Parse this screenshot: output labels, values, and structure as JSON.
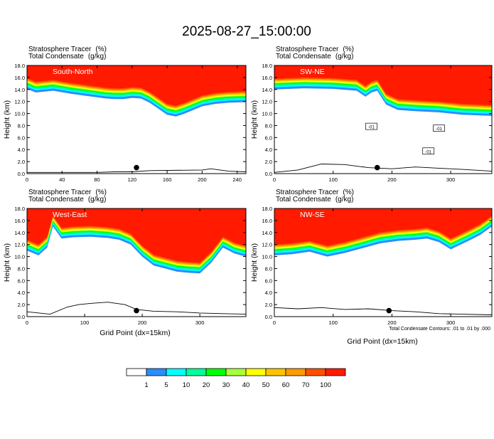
{
  "title": "2025-08-27_15:00:00",
  "panel_labels": {
    "left": "Stratosphere Tracer",
    "left_unit": "(%)",
    "right": "Total Condensate",
    "right_unit": "(g/kg)"
  },
  "ylabel": "Height (km)",
  "xlabel": "Grid Point (dx=15km)",
  "contour_note": "Total Condensate Contours: .01 to .01 by .000",
  "colors": {
    "red": "#ff1a00",
    "orange_red": "#ff5000",
    "orange": "#ff9a00",
    "amber": "#ffc400",
    "yellow": "#ffff00",
    "lime": "#a8ff3c",
    "green": "#00ff00",
    "spring": "#00ff99",
    "cyan": "#00ffff",
    "blue": "#2a8cff"
  },
  "colorbar": {
    "labels": [
      "1",
      "5",
      "10",
      "20",
      "30",
      "40",
      "50",
      "60",
      "70",
      "100"
    ],
    "colors": [
      "#ffffff",
      "#2a8cff",
      "#00ffff",
      "#00ff99",
      "#00ff00",
      "#a8ff3c",
      "#ffff00",
      "#ffc400",
      "#ff9a00",
      "#ff5000",
      "#ff1a00"
    ]
  },
  "chart_data": [
    {
      "type": "heatmap",
      "name": "South-North",
      "xlim": [
        0,
        250
      ],
      "xticks": [
        0,
        40,
        80,
        120,
        160,
        200,
        240
      ],
      "ylim": [
        0,
        18
      ],
      "yticks": [
        "0.0",
        "2.0",
        "4.0",
        "6.0",
        "8.0",
        "10.0",
        "12.0",
        "14.0",
        "16.0",
        "18.0"
      ],
      "tracer_base_height": {
        "x": [
          0,
          10,
          30,
          50,
          70,
          90,
          100,
          110,
          120,
          130,
          140,
          150,
          160,
          170,
          180,
          190,
          200,
          215,
          230,
          250
        ],
        "y": [
          14.1,
          13.5,
          13.8,
          13.3,
          12.9,
          12.5,
          12.4,
          12.4,
          12.6,
          12.5,
          11.8,
          10.8,
          9.8,
          9.5,
          10.0,
          10.6,
          11.2,
          11.6,
          11.8,
          11.9
        ]
      },
      "terrain": {
        "x": [
          0,
          40,
          80,
          100,
          120,
          140,
          200,
          210,
          230,
          250
        ],
        "y": [
          0.2,
          0.2,
          0.2,
          0.3,
          0.3,
          0.5,
          0.6,
          0.8,
          0.4,
          0.3
        ]
      },
      "marker": {
        "x": 125,
        "y": 1.0
      }
    },
    {
      "type": "heatmap",
      "name": "SW-NE",
      "xlim": [
        0,
        370
      ],
      "xticks": [
        0,
        100,
        200,
        300
      ],
      "ylim": [
        0,
        18
      ],
      "yticks": [
        "0.0",
        "2.0",
        "4.0",
        "6.0",
        "8.0",
        "10.0",
        "12.0",
        "14.0",
        "16.0",
        "18.0"
      ],
      "tracer_base_height": {
        "x": [
          0,
          50,
          100,
          140,
          155,
          165,
          175,
          190,
          210,
          240,
          280,
          320,
          370
        ],
        "y": [
          14.0,
          14.2,
          14.1,
          13.8,
          12.8,
          13.5,
          13.8,
          11.5,
          10.6,
          10.4,
          10.2,
          9.8,
          9.6
        ]
      },
      "terrain": {
        "x": [
          0,
          40,
          80,
          120,
          160,
          200,
          240,
          280,
          320,
          370
        ],
        "y": [
          0.2,
          0.6,
          1.6,
          1.5,
          1.0,
          0.8,
          1.1,
          0.9,
          0.7,
          0.4
        ]
      },
      "marker": {
        "x": 175,
        "y": 1.0
      },
      "annotations": [
        "-01",
        "-01",
        "-01"
      ]
    },
    {
      "type": "heatmap",
      "name": "West-East",
      "xlim": [
        0,
        380
      ],
      "xticks": [
        0,
        100,
        200,
        300
      ],
      "ylim": [
        0,
        18
      ],
      "yticks": [
        "0.0",
        "2.0",
        "4.0",
        "6.0",
        "8.0",
        "10.0",
        "12.0",
        "14.0",
        "16.0",
        "18.0"
      ],
      "tracer_base_height": {
        "x": [
          0,
          20,
          35,
          45,
          60,
          80,
          110,
          140,
          160,
          180,
          200,
          220,
          240,
          260,
          280,
          300,
          320,
          340,
          360,
          380
        ],
        "y": [
          11.0,
          10.2,
          11.5,
          15.0,
          13.0,
          13.2,
          13.3,
          13.1,
          12.8,
          12.0,
          10.0,
          8.5,
          8.0,
          7.5,
          7.3,
          7.2,
          9.0,
          11.5,
          10.5,
          10.0
        ]
      },
      "terrain": {
        "x": [
          0,
          40,
          70,
          90,
          110,
          140,
          170,
          190,
          220,
          260,
          300,
          340,
          380
        ],
        "y": [
          0.8,
          0.4,
          1.6,
          2.0,
          2.2,
          2.4,
          2.0,
          1.2,
          0.9,
          0.8,
          0.6,
          0.5,
          0.4
        ]
      },
      "marker": {
        "x": 190,
        "y": 1.0
      }
    },
    {
      "type": "heatmap",
      "name": "NW-SE",
      "xlim": [
        0,
        370
      ],
      "xticks": [
        0,
        100,
        200,
        300
      ],
      "ylim": [
        0,
        18
      ],
      "yticks": [
        "0.0",
        "2.0",
        "4.0",
        "6.0",
        "8.0",
        "10.0",
        "12.0",
        "14.0",
        "16.0",
        "18.0"
      ],
      "tracer_base_height": {
        "x": [
          0,
          30,
          60,
          90,
          120,
          150,
          180,
          210,
          240,
          260,
          280,
          300,
          330,
          350,
          370
        ],
        "y": [
          10.2,
          10.4,
          10.8,
          10.0,
          10.6,
          11.4,
          12.2,
          12.6,
          12.8,
          13.0,
          12.4,
          11.2,
          12.6,
          13.6,
          15.0
        ]
      },
      "terrain": {
        "x": [
          0,
          40,
          80,
          120,
          160,
          200,
          240,
          280,
          320,
          370
        ],
        "y": [
          1.5,
          1.3,
          1.5,
          1.2,
          1.3,
          1.0,
          0.8,
          0.5,
          0.4,
          0.3
        ]
      },
      "marker": {
        "x": 195,
        "y": 1.0
      }
    }
  ]
}
